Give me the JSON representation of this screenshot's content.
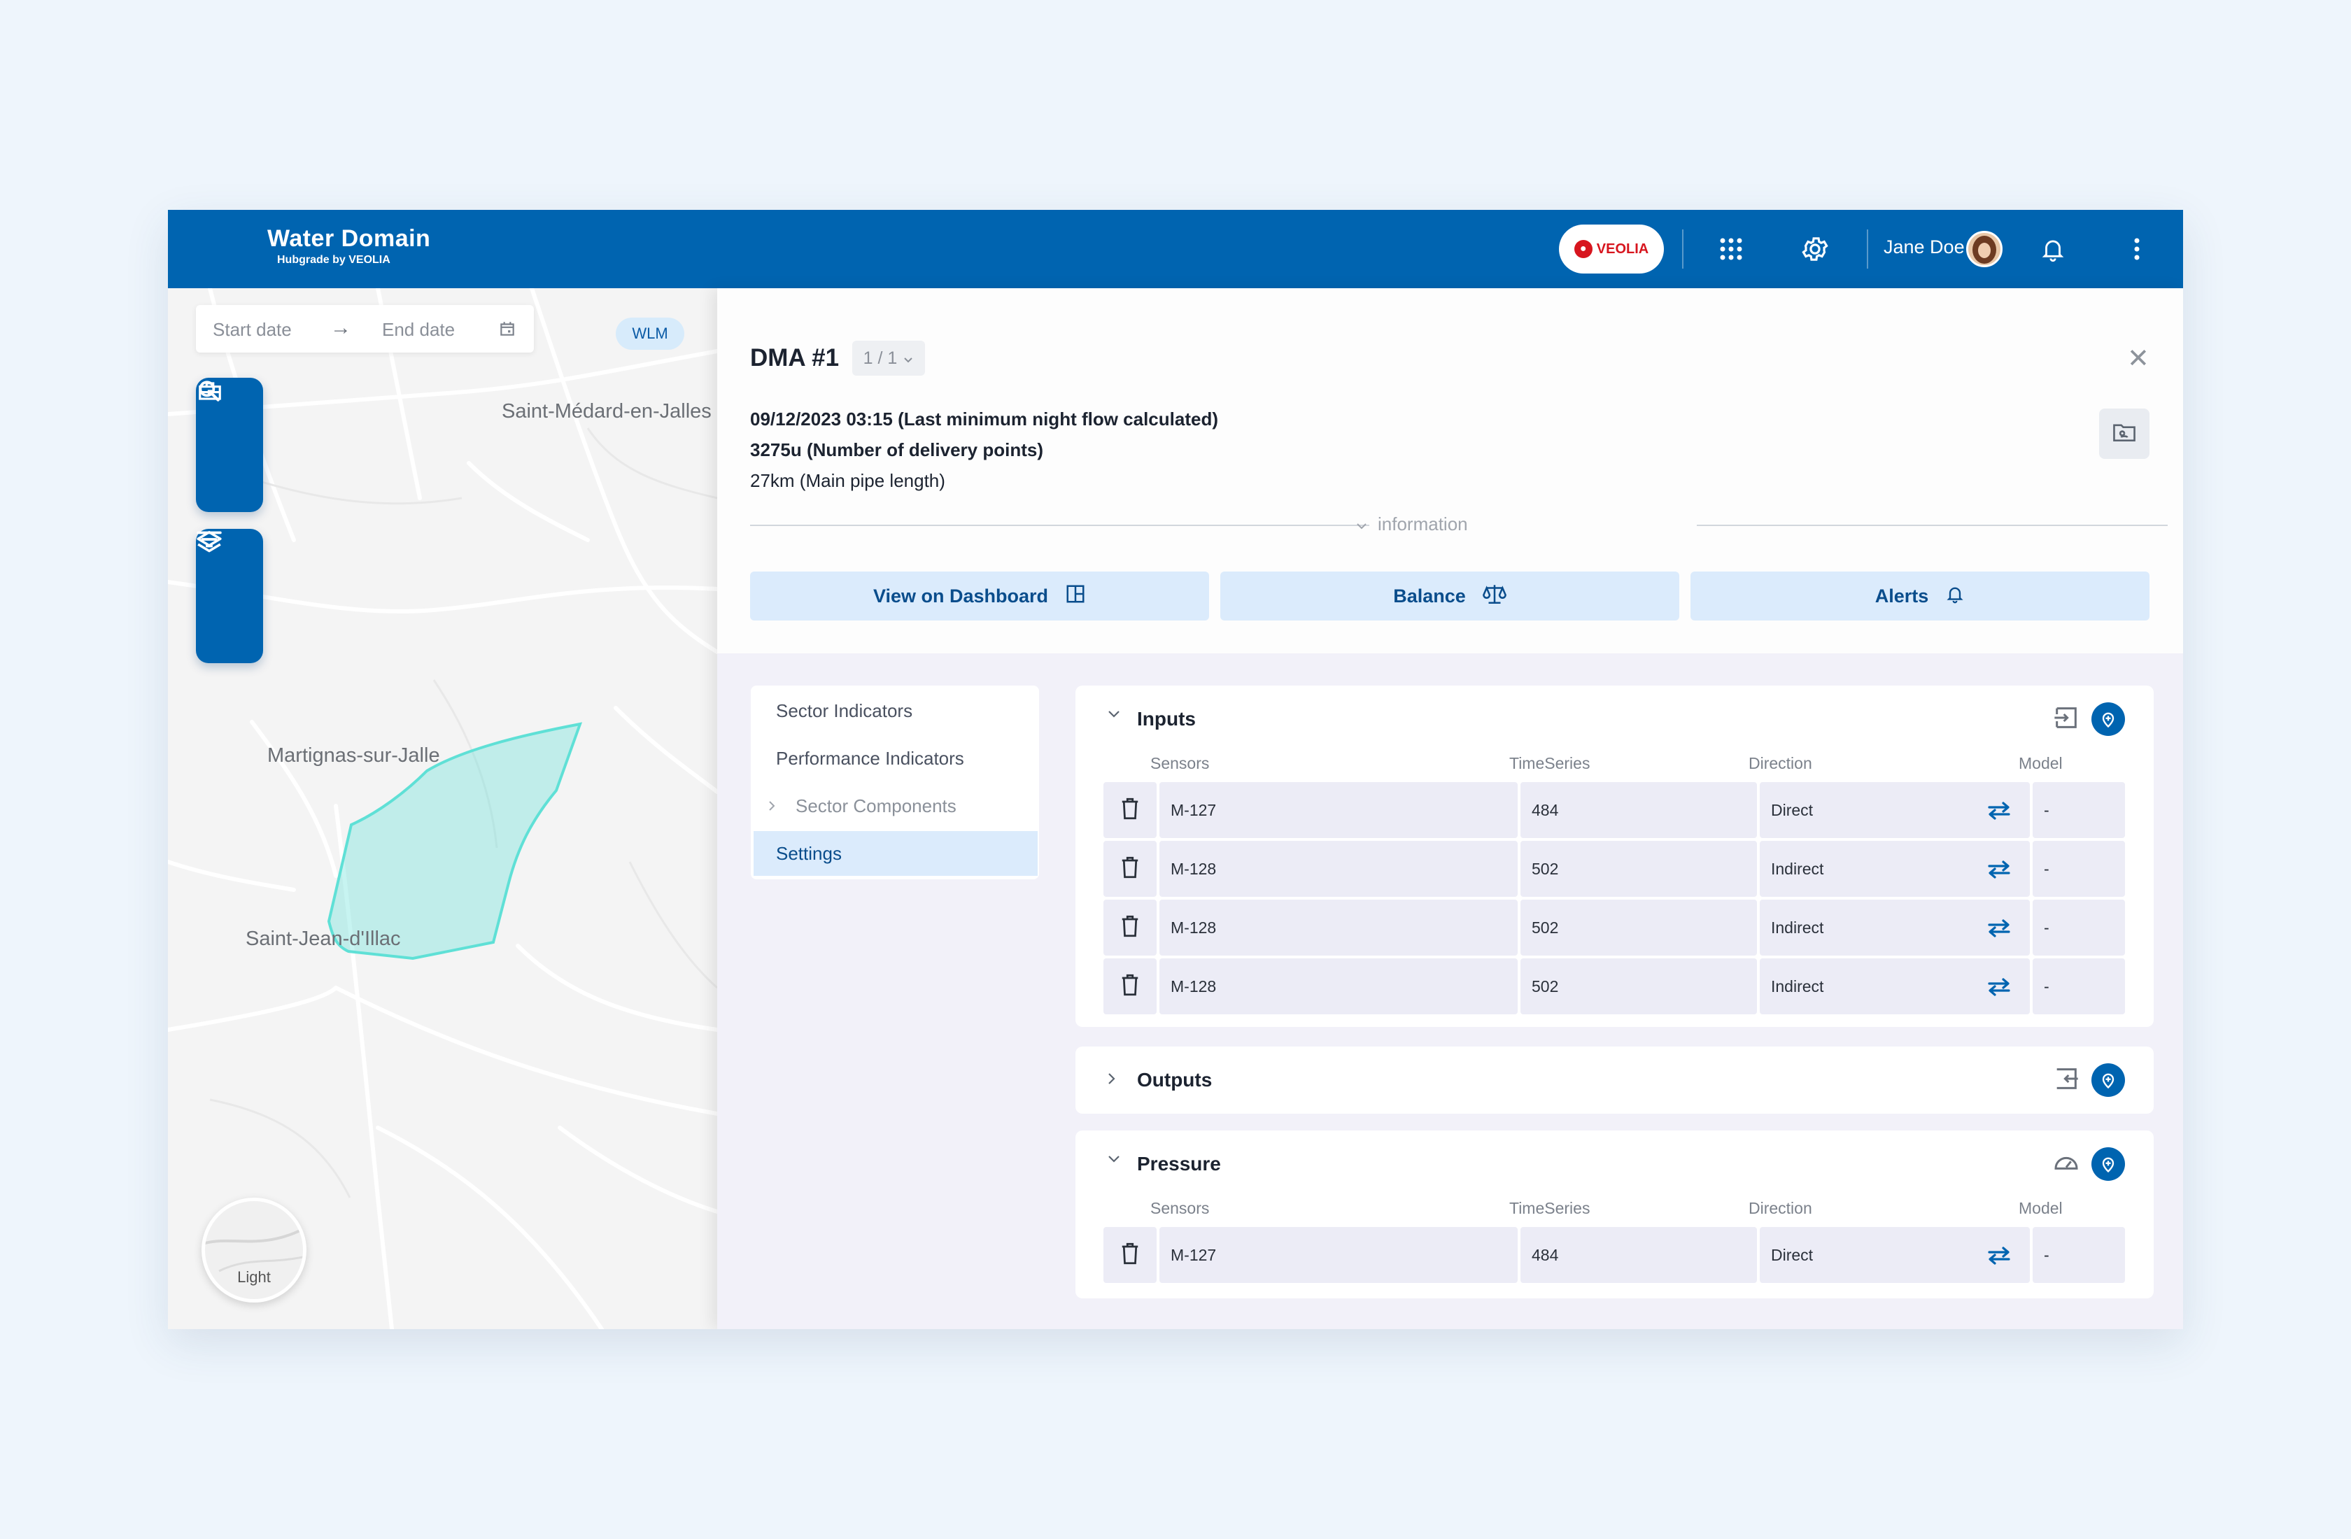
{
  "header": {
    "brand_title": "Water Domain",
    "brand_sub": "Hubgrade by VEOLIA",
    "veolia_label": "VEOLIA",
    "user_name": "Jane Doe",
    "accent_color": "#0064b0"
  },
  "map": {
    "start_date_placeholder": "Start date",
    "end_date_placeholder": "End date",
    "arrow": "→",
    "wlm_badge": "WLM",
    "labels": {
      "saint_medard": "Saint-Médard-en-Jalles",
      "martignas": "Martignas-sur-Jalle",
      "saint_jean": "Saint-Jean-d'Illac"
    },
    "basemap_label": "Light",
    "polygon_color": "#5fe0d6"
  },
  "panel": {
    "title": "DMA #1",
    "pager": "1 / 1",
    "info_line1": "09/12/2023 03:15 (Last minimum night flow calculated)",
    "info_line2": "3275u (Number of delivery points)",
    "info_line3": "27km (Main pipe length)",
    "info_label": "information",
    "actions": {
      "dashboard": "View on Dashboard",
      "balance": "Balance",
      "alerts": "Alerts"
    },
    "nav": [
      {
        "label": "Sector Indicators"
      },
      {
        "label": "Performance Indicators"
      },
      {
        "label": "Sector Components"
      },
      {
        "label": "Settings"
      }
    ],
    "columns": {
      "sensors": "Sensors",
      "timeseries": "TimeSeries",
      "direction": "Direction",
      "model": "Model"
    },
    "inputs": {
      "title": "Inputs",
      "rows": [
        {
          "sensor": "M-127",
          "timeseries": "484",
          "direction": "Direct",
          "model": "-"
        },
        {
          "sensor": "M-128",
          "timeseries": "502",
          "direction": "Indirect",
          "model": "-"
        },
        {
          "sensor": "M-128",
          "timeseries": "502",
          "direction": "Indirect",
          "model": "-"
        },
        {
          "sensor": "M-128",
          "timeseries": "502",
          "direction": "Indirect",
          "model": "-"
        }
      ]
    },
    "outputs": {
      "title": "Outputs"
    },
    "pressure": {
      "title": "Pressure",
      "rows": [
        {
          "sensor": "M-127",
          "timeseries": "484",
          "direction": "Direct",
          "model": "-"
        }
      ]
    }
  }
}
